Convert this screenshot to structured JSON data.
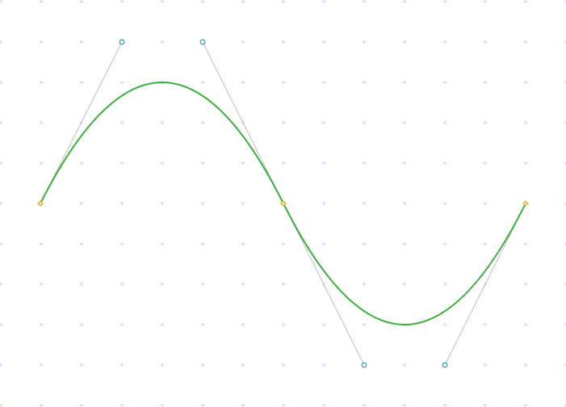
{
  "canvas": {
    "background": "#ffffff",
    "grid_marker_color": "#c9d3ee",
    "show_grid": true
  },
  "curve": {
    "kind": "cubic-bezier-spline",
    "stroke_color": "#3aae3a",
    "segments": [
      {
        "start_anchor": [
          50,
          252
        ],
        "control_1": [
          151,
          52
        ],
        "control_2": [
          251,
          52
        ],
        "end_anchor": [
          351,
          252
        ]
      },
      {
        "start_anchor": [
          351,
          252
        ],
        "control_1": [
          451,
          452
        ],
        "control_2": [
          551,
          452
        ],
        "end_anchor": [
          651,
          252
        ]
      }
    ]
  },
  "handles": {
    "line_color": "#bdbdbd",
    "control_point_color": "#3aa6b0",
    "anchor_point_color": "#d2b02a"
  }
}
